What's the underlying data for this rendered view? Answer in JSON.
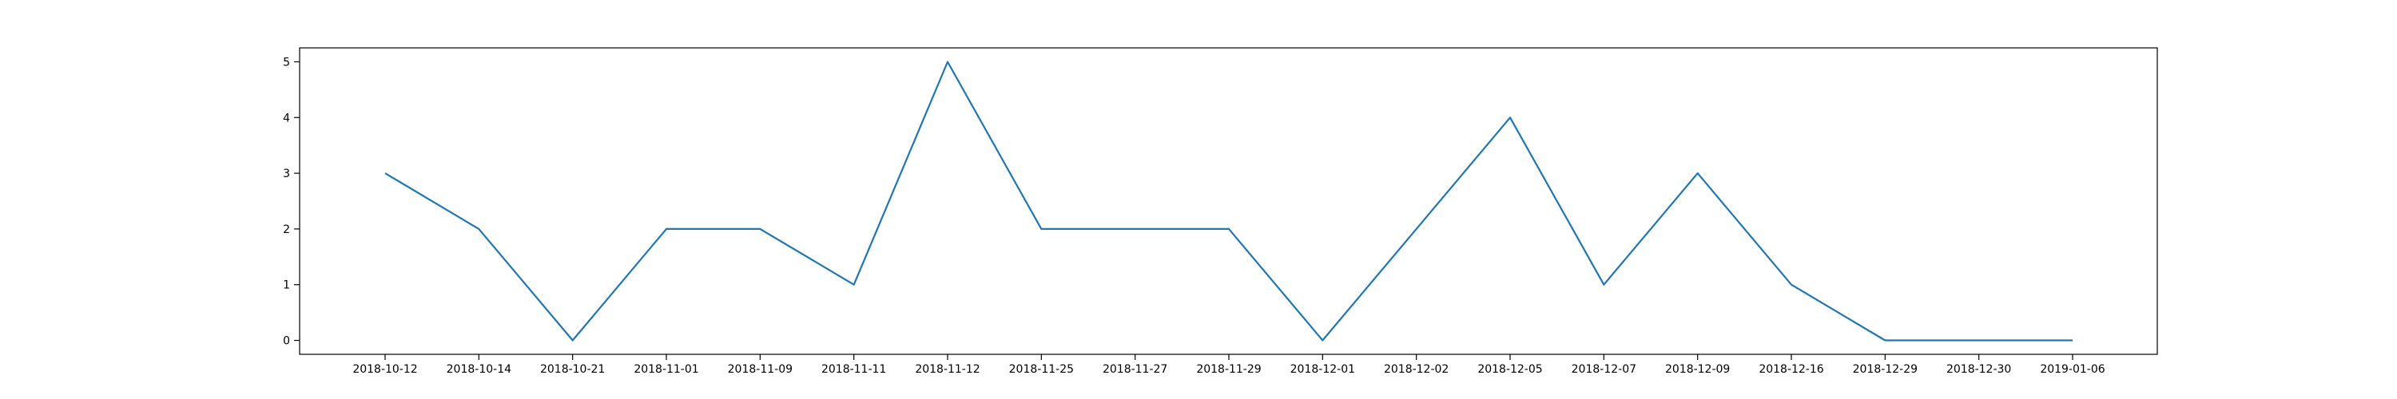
{
  "chart_data": {
    "type": "line",
    "title": "",
    "xlabel": "",
    "ylabel": "",
    "categories": [
      "2018-10-12",
      "2018-10-14",
      "2018-10-21",
      "2018-11-01",
      "2018-11-09",
      "2018-11-11",
      "2018-11-12",
      "2018-11-25",
      "2018-11-27",
      "2018-11-29",
      "2018-12-01",
      "2018-12-02",
      "2018-12-05",
      "2018-12-07",
      "2018-12-09",
      "2018-12-16",
      "2018-12-29",
      "2018-12-30",
      "2019-01-06"
    ],
    "series": [
      {
        "values": [
          3,
          2,
          0,
          2,
          2,
          1,
          5,
          2,
          2,
          2,
          0,
          2,
          4,
          1,
          3,
          1,
          0,
          0,
          0
        ],
        "color": "#1f77b4"
      }
    ],
    "ylim": [
      -0.25,
      5.25
    ],
    "yticks": [
      0,
      1,
      2,
      3,
      4,
      5
    ],
    "grid": false,
    "legend": "none"
  }
}
